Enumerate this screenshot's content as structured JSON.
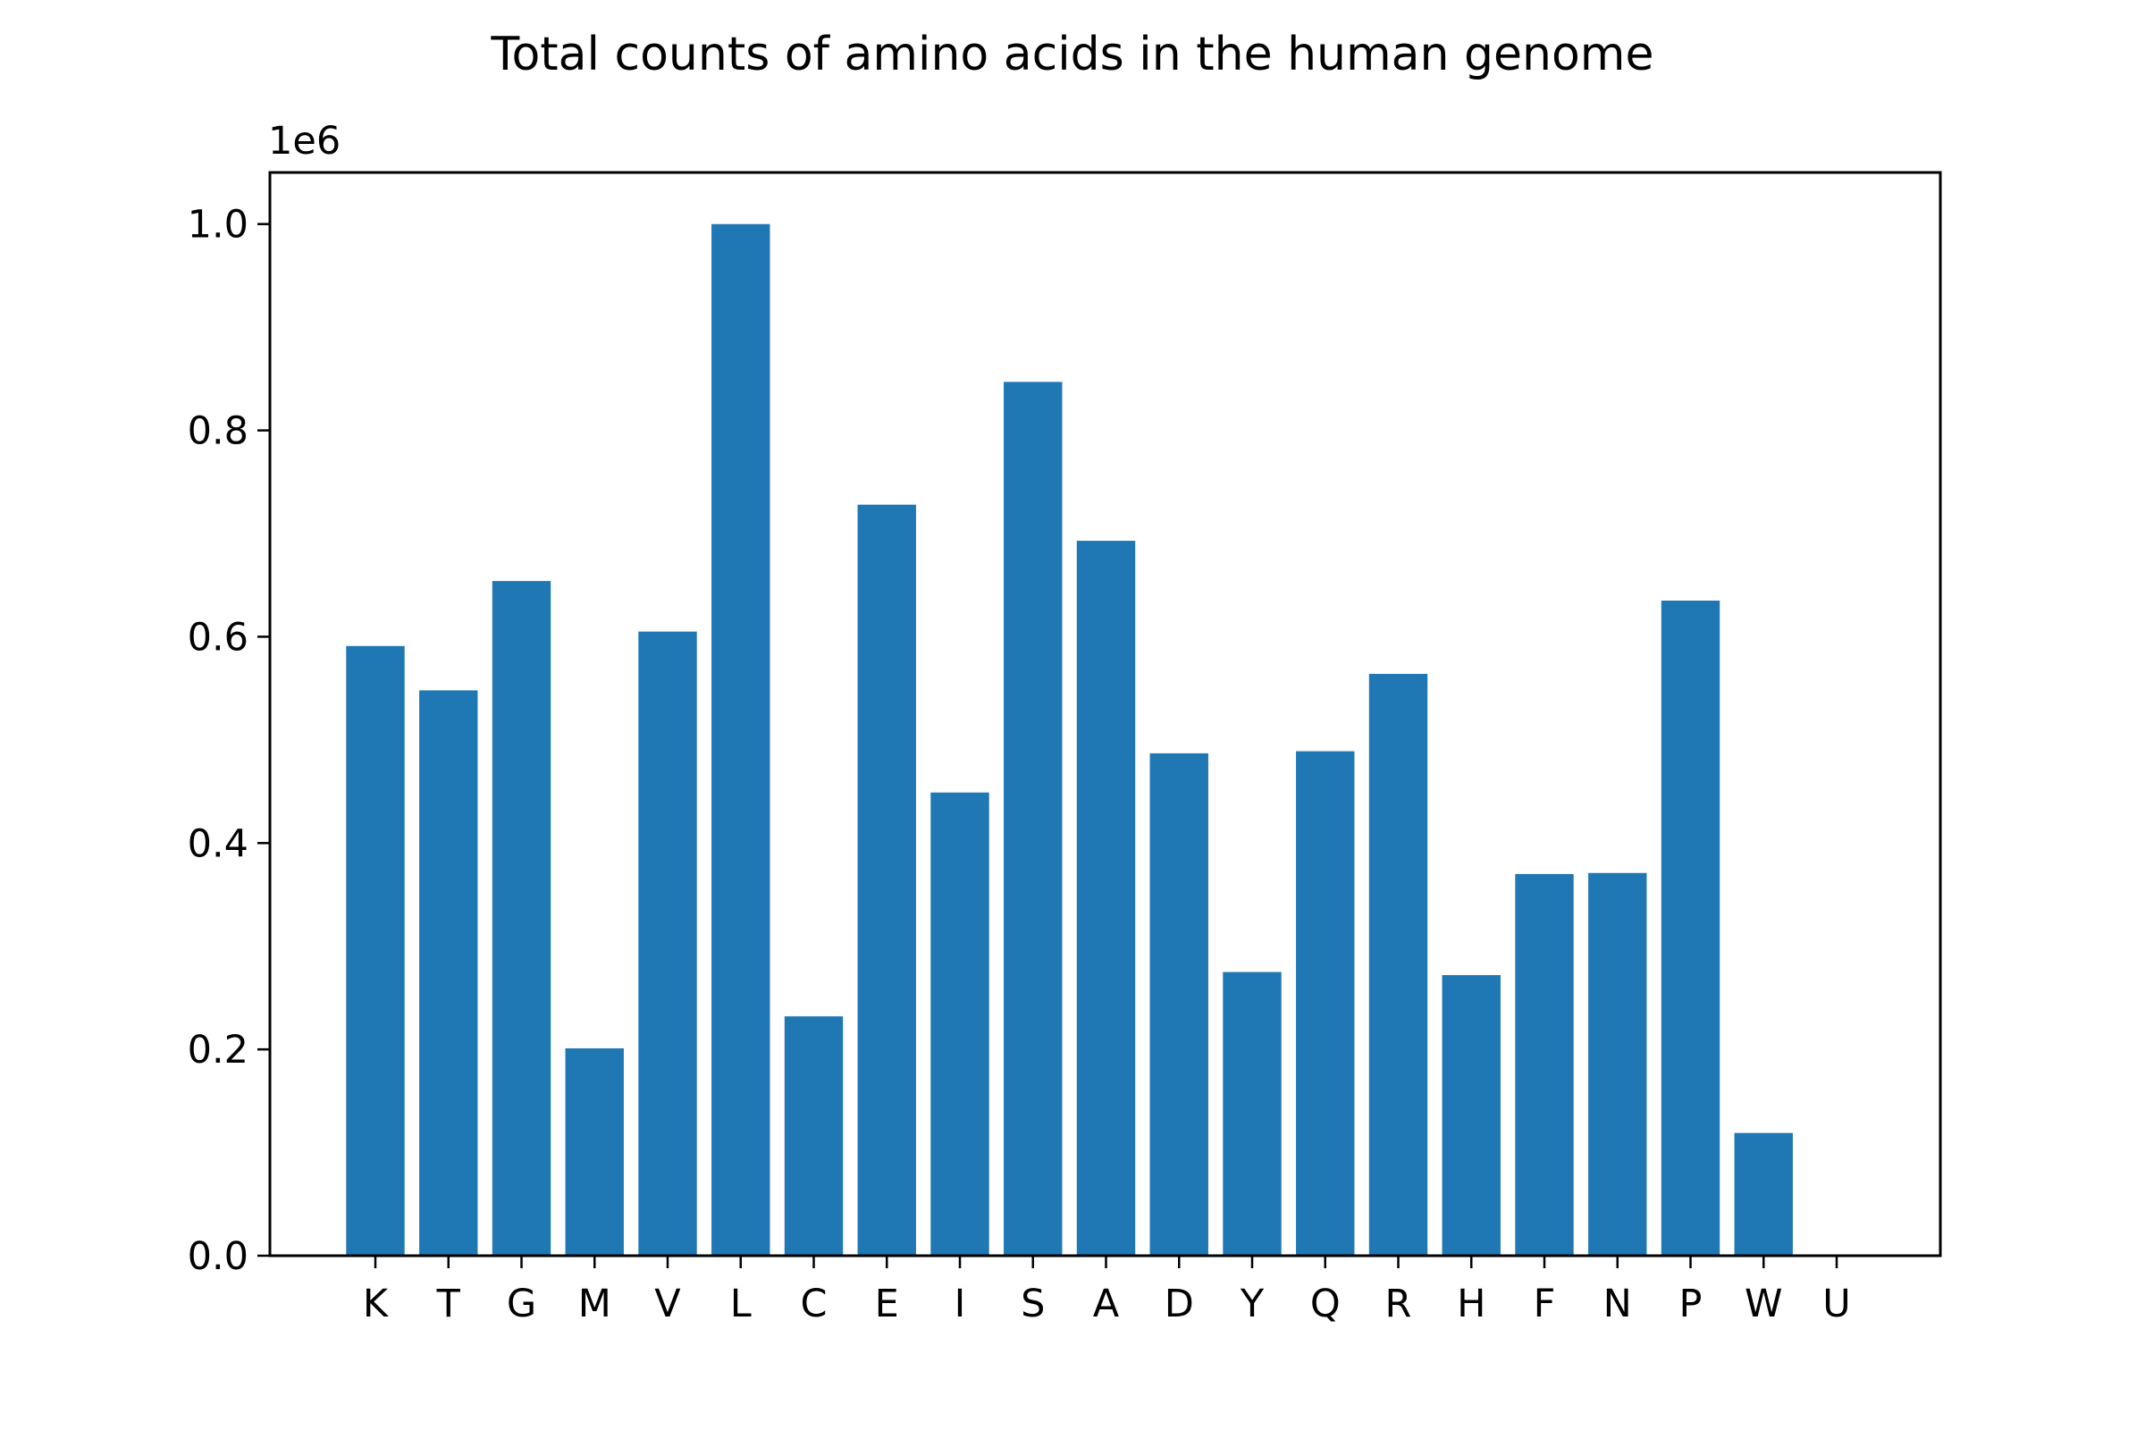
{
  "chart_data": {
    "type": "bar",
    "title": "Total counts of amino acids in the human genome",
    "xlabel": "",
    "ylabel": "",
    "y_offset_label": "1e6",
    "y_scale": 1000000,
    "categories": [
      "K",
      "T",
      "G",
      "M",
      "V",
      "L",
      "C",
      "E",
      "I",
      "S",
      "A",
      "D",
      "Y",
      "Q",
      "R",
      "H",
      "F",
      "N",
      "P",
      "W",
      "U"
    ],
    "values": [
      591000,
      548000,
      654000,
      201000,
      605000,
      1000000,
      232000,
      728000,
      449000,
      847000,
      693000,
      487000,
      275000,
      489000,
      564000,
      272000,
      370000,
      371000,
      635000,
      119000,
      0
    ],
    "ylim": [
      0,
      1050000
    ],
    "yticks": [
      0,
      200000,
      400000,
      600000,
      800000,
      1000000
    ],
    "ytick_labels": [
      "0.0",
      "0.2",
      "0.4",
      "0.6",
      "0.8",
      "1.0"
    ],
    "bar_color": "#1f77b4",
    "grid": false,
    "legend": "none"
  }
}
